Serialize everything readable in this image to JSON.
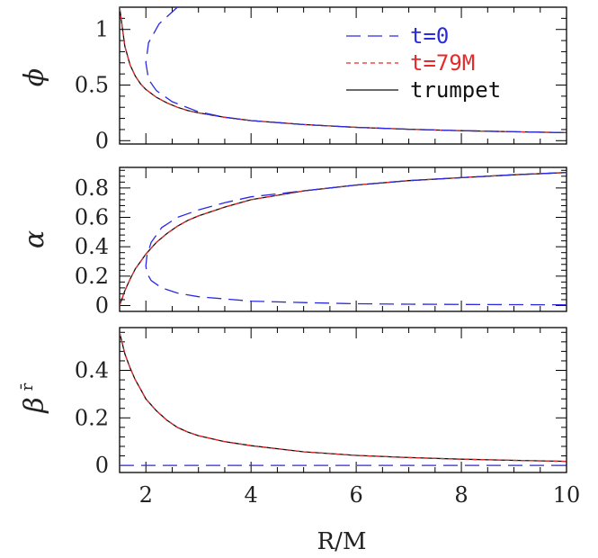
{
  "chart_data": [
    {
      "type": "line",
      "ylabel": "ϕ",
      "xlim": [
        1.5,
        10
      ],
      "ylim": [
        -0.03,
        1.2
      ],
      "yticks": [
        0,
        0.5,
        1
      ],
      "yticklabels": [
        "0",
        "0.5",
        "1"
      ],
      "legend": {
        "placement": "top-right",
        "entries": [
          {
            "label": "t=0",
            "style": "long-dash",
            "color": "#2a2ae0"
          },
          {
            "label": "t=79M",
            "style": "short-dash",
            "color": "#e62a2a"
          },
          {
            "label": "trumpet",
            "style": "solid",
            "color": "#111111"
          }
        ]
      },
      "series": [
        {
          "name": "trumpet",
          "color": "#111111",
          "style": "solid",
          "x": [
            1.5,
            1.6,
            1.7,
            1.8,
            1.9,
            2.0,
            2.2,
            2.4,
            2.6,
            2.8,
            3.0,
            3.5,
            4.0,
            5.0,
            6.0,
            7.0,
            8.0,
            9.0,
            10.0
          ],
          "y": [
            1.2,
            0.85,
            0.68,
            0.58,
            0.51,
            0.46,
            0.39,
            0.34,
            0.3,
            0.27,
            0.25,
            0.21,
            0.18,
            0.145,
            0.12,
            0.103,
            0.09,
            0.08,
            0.072
          ]
        },
        {
          "name": "t=79M",
          "color": "#e62a2a",
          "style": "short-dash",
          "x": [
            1.5,
            1.6,
            1.7,
            1.8,
            1.9,
            2.0,
            2.2,
            2.4,
            2.6,
            2.8,
            3.0,
            3.5,
            4.0,
            5.0,
            6.0,
            7.0,
            8.0,
            9.0,
            10.0
          ],
          "y": [
            1.2,
            0.85,
            0.68,
            0.58,
            0.51,
            0.46,
            0.39,
            0.34,
            0.3,
            0.27,
            0.25,
            0.21,
            0.18,
            0.145,
            0.12,
            0.103,
            0.09,
            0.08,
            0.072
          ]
        },
        {
          "name": "t=0",
          "color": "#2a2ae0",
          "style": "long-dash",
          "x": [
            2.6,
            2.25,
            2.05,
            2.0,
            2.05,
            2.2,
            2.5,
            3.0,
            3.5,
            4.0,
            5.0,
            6.0,
            7.0,
            8.0,
            9.0,
            10.0
          ],
          "y": [
            1.2,
            1.05,
            0.88,
            0.7,
            0.55,
            0.45,
            0.35,
            0.26,
            0.21,
            0.18,
            0.145,
            0.12,
            0.103,
            0.09,
            0.08,
            0.072
          ]
        }
      ]
    },
    {
      "type": "line",
      "ylabel": "α",
      "xlim": [
        1.5,
        10
      ],
      "ylim": [
        -0.04,
        0.94
      ],
      "yticks": [
        0,
        0.2,
        0.4,
        0.6,
        0.8
      ],
      "yticklabels": [
        "0",
        "0.2",
        "0.4",
        "0.6",
        "0.8"
      ],
      "series": [
        {
          "name": "trumpet",
          "color": "#111111",
          "style": "solid",
          "x": [
            1.5,
            1.6,
            1.7,
            1.8,
            1.9,
            2.0,
            2.2,
            2.4,
            2.6,
            2.8,
            3.0,
            3.5,
            4.0,
            5.0,
            6.0,
            7.0,
            8.0,
            9.0,
            10.0
          ],
          "y": [
            0.0,
            0.1,
            0.18,
            0.25,
            0.3,
            0.35,
            0.43,
            0.49,
            0.54,
            0.58,
            0.61,
            0.67,
            0.72,
            0.78,
            0.82,
            0.85,
            0.87,
            0.89,
            0.905
          ]
        },
        {
          "name": "t=79M",
          "color": "#e62a2a",
          "style": "short-dash",
          "x": [
            1.5,
            1.6,
            1.7,
            1.8,
            1.9,
            2.0,
            2.2,
            2.4,
            2.6,
            2.8,
            3.0,
            3.5,
            4.0,
            5.0,
            6.0,
            7.0,
            8.0,
            9.0,
            10.0
          ],
          "y": [
            0.0,
            0.1,
            0.18,
            0.25,
            0.3,
            0.35,
            0.43,
            0.49,
            0.54,
            0.58,
            0.61,
            0.67,
            0.72,
            0.78,
            0.82,
            0.85,
            0.87,
            0.89,
            0.905
          ]
        },
        {
          "name": "t=0",
          "color": "#2a2ae0",
          "style": "long-dash",
          "x": [
            10.0,
            9.0,
            8.0,
            7.0,
            6.0,
            5.0,
            4.0,
            3.5,
            3.0,
            2.6,
            2.3,
            2.1,
            2.02,
            2.0,
            2.02,
            2.1,
            2.3,
            2.6,
            3.0,
            3.5,
            4.0,
            5.0,
            6.0,
            7.0,
            8.0,
            9.0,
            10.0
          ],
          "y": [
            0.005,
            0.006,
            0.007,
            0.009,
            0.012,
            0.02,
            0.03,
            0.045,
            0.06,
            0.085,
            0.12,
            0.17,
            0.22,
            0.27,
            0.34,
            0.43,
            0.53,
            0.6,
            0.65,
            0.7,
            0.74,
            0.78,
            0.82,
            0.85,
            0.87,
            0.89,
            0.905
          ]
        }
      ]
    },
    {
      "type": "line",
      "ylabel": "β",
      "ylabel_super": "r̄",
      "xlabel": "R/M",
      "xlim": [
        1.5,
        10
      ],
      "ylim": [
        -0.03,
        0.58
      ],
      "yticks": [
        0,
        0.2,
        0.4
      ],
      "yticklabels": [
        "0",
        "0.2",
        "0.4"
      ],
      "xticks": [
        2,
        4,
        6,
        8,
        10
      ],
      "xticklabels": [
        "2",
        "4",
        "6",
        "8",
        "10"
      ],
      "series": [
        {
          "name": "trumpet",
          "color": "#111111",
          "style": "solid",
          "x": [
            1.5,
            1.6,
            1.7,
            1.8,
            1.9,
            2.0,
            2.2,
            2.4,
            2.6,
            2.8,
            3.0,
            3.5,
            4.0,
            5.0,
            6.0,
            7.0,
            8.0,
            9.0,
            10.0
          ],
          "y": [
            0.56,
            0.47,
            0.41,
            0.36,
            0.32,
            0.28,
            0.23,
            0.19,
            0.16,
            0.14,
            0.125,
            0.1,
            0.083,
            0.057,
            0.042,
            0.033,
            0.026,
            0.021,
            0.017
          ]
        },
        {
          "name": "t=79M",
          "color": "#e62a2a",
          "style": "short-dash",
          "x": [
            1.5,
            1.6,
            1.7,
            1.8,
            1.9,
            2.0,
            2.2,
            2.4,
            2.6,
            2.8,
            3.0,
            3.5,
            4.0,
            5.0,
            6.0,
            7.0,
            8.0,
            9.0,
            10.0
          ],
          "y": [
            0.56,
            0.47,
            0.41,
            0.36,
            0.32,
            0.28,
            0.23,
            0.19,
            0.16,
            0.14,
            0.125,
            0.1,
            0.083,
            0.057,
            0.042,
            0.033,
            0.026,
            0.021,
            0.017
          ]
        },
        {
          "name": "t=0",
          "color": "#2a2ae0",
          "style": "long-dash",
          "x": [
            1.5,
            10.0
          ],
          "y": [
            0.0,
            0.0
          ]
        }
      ]
    }
  ]
}
